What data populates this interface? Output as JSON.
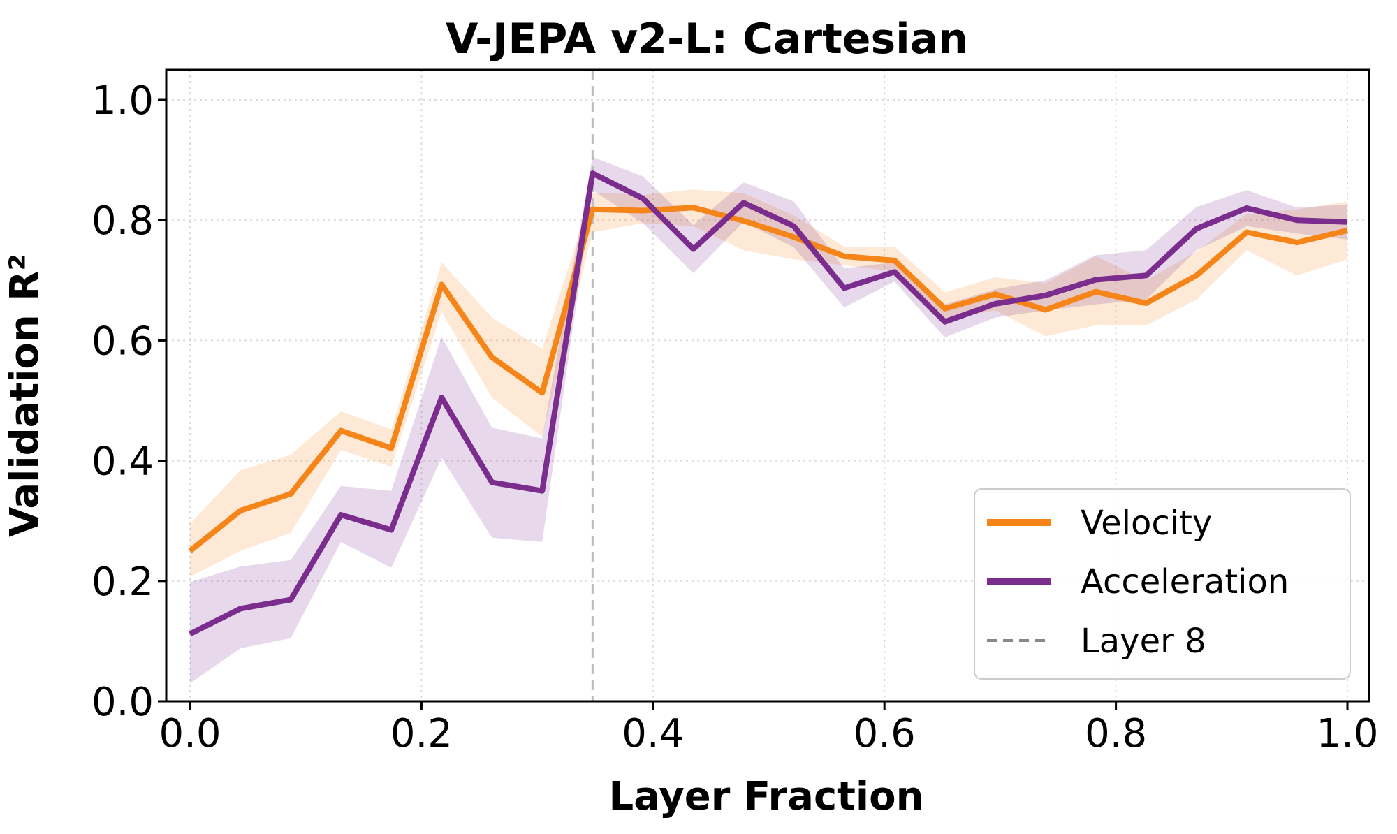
{
  "chart_data": {
    "type": "line",
    "title": "V-JEPA v2-L: Cartesian",
    "xlabel": "Layer Fraction",
    "ylabel": "Validation R²",
    "xlim": [
      -0.02,
      1.02
    ],
    "ylim": [
      0.0,
      1.05
    ],
    "x_ticks": [
      "0.0",
      "0.2",
      "0.4",
      "0.6",
      "0.8",
      "1.0"
    ],
    "y_ticks": [
      "0.0",
      "0.2",
      "0.4",
      "0.6",
      "0.8",
      "1.0"
    ],
    "grid": true,
    "legend_position": "lower-right",
    "x": [
      0.0,
      0.0435,
      0.087,
      0.1304,
      0.1739,
      0.2174,
      0.2609,
      0.3043,
      0.3478,
      0.3913,
      0.4348,
      0.4783,
      0.5217,
      0.5652,
      0.6087,
      0.6522,
      0.6957,
      0.7391,
      0.7826,
      0.8261,
      0.8696,
      0.913,
      0.9565,
      1.0
    ],
    "series": [
      {
        "name": "Velocity",
        "color": "#F58518",
        "values": [
          0.25,
          0.317,
          0.345,
          0.45,
          0.421,
          0.693,
          0.572,
          0.513,
          0.818,
          0.816,
          0.821,
          0.799,
          0.772,
          0.74,
          0.733,
          0.653,
          0.677,
          0.651,
          0.681,
          0.662,
          0.708,
          0.78,
          0.763,
          0.783
        ],
        "lower": [
          0.207,
          0.25,
          0.28,
          0.418,
          0.39,
          0.648,
          0.505,
          0.44,
          0.78,
          0.795,
          0.79,
          0.75,
          0.735,
          0.725,
          0.715,
          0.635,
          0.65,
          0.607,
          0.625,
          0.625,
          0.668,
          0.75,
          0.708,
          0.735
        ],
        "upper": [
          0.295,
          0.384,
          0.41,
          0.482,
          0.452,
          0.73,
          0.638,
          0.586,
          0.846,
          0.842,
          0.851,
          0.845,
          0.808,
          0.756,
          0.756,
          0.68,
          0.705,
          0.695,
          0.74,
          0.7,
          0.748,
          0.81,
          0.818,
          0.831
        ]
      },
      {
        "name": "Acceleration",
        "color": "#7B2D8E",
        "values": [
          0.112,
          0.154,
          0.169,
          0.31,
          0.285,
          0.505,
          0.364,
          0.35,
          0.878,
          0.836,
          0.752,
          0.829,
          0.79,
          0.687,
          0.714,
          0.631,
          0.661,
          0.675,
          0.701,
          0.708,
          0.786,
          0.82,
          0.8,
          0.797
        ],
        "lower": [
          0.03,
          0.088,
          0.105,
          0.265,
          0.222,
          0.405,
          0.272,
          0.265,
          0.85,
          0.795,
          0.712,
          0.797,
          0.755,
          0.655,
          0.698,
          0.605,
          0.638,
          0.65,
          0.66,
          0.668,
          0.75,
          0.79,
          0.778,
          0.768
        ],
        "upper": [
          0.198,
          0.224,
          0.235,
          0.358,
          0.35,
          0.606,
          0.455,
          0.437,
          0.905,
          0.873,
          0.792,
          0.863,
          0.831,
          0.72,
          0.73,
          0.66,
          0.685,
          0.7,
          0.742,
          0.75,
          0.822,
          0.85,
          0.821,
          0.826
        ]
      }
    ],
    "reference_line": {
      "name": "Layer 8",
      "x": 0.3478,
      "color": "#BBBBBB",
      "legend_color": "#888888",
      "style": "dashed"
    }
  }
}
